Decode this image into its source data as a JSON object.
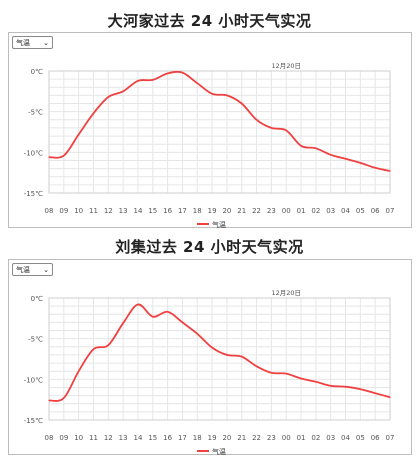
{
  "charts": [
    {
      "title": "大河家过去 24 小时天气实况",
      "select_value": "气温",
      "date_label": "12月20日",
      "legend": "气温"
    },
    {
      "title": "刘集过去 24 小时天气实况",
      "select_value": "气温",
      "date_label": "12月20日",
      "legend": "气温"
    }
  ],
  "colors": {
    "line": "#f04040",
    "grid": "#e6e6e6",
    "axis_text": "#555555"
  },
  "icons": [
    "chevron-down-icon"
  ],
  "chart_data": [
    {
      "type": "line",
      "title": "大河家过去 24 小时天气实况",
      "categories": [
        "08",
        "09",
        "10",
        "11",
        "12",
        "13",
        "14",
        "15",
        "16",
        "17",
        "18",
        "19",
        "20",
        "21",
        "22",
        "23",
        "00",
        "01",
        "02",
        "03",
        "04",
        "05",
        "06",
        "07"
      ],
      "y_ticks": [
        "0℃",
        "-5℃",
        "-10℃",
        "-15℃"
      ],
      "ylim": [
        -15,
        0
      ],
      "grid": true,
      "legend_position": "bottom",
      "series": [
        {
          "name": "气温",
          "values": [
            -10.6,
            -10.4,
            -7.8,
            -5.2,
            -3.2,
            -2.5,
            -1.2,
            -1.1,
            -0.3,
            -0.2,
            -1.5,
            -2.8,
            -3.0,
            -4.0,
            -6.0,
            -7.0,
            -7.3,
            -9.2,
            -9.5,
            -10.3,
            -10.8,
            -11.3,
            -11.9,
            -12.3
          ]
        }
      ]
    },
    {
      "type": "line",
      "title": "刘集过去 24 小时天气实况",
      "categories": [
        "08",
        "09",
        "10",
        "11",
        "12",
        "13",
        "14",
        "15",
        "16",
        "17",
        "18",
        "19",
        "20",
        "21",
        "22",
        "23",
        "00",
        "01",
        "02",
        "03",
        "04",
        "05",
        "06",
        "07"
      ],
      "y_ticks": [
        "0℃",
        "-5℃",
        "-10℃",
        "-15℃"
      ],
      "ylim": [
        -15,
        0
      ],
      "grid": true,
      "legend_position": "bottom",
      "series": [
        {
          "name": "气温",
          "values": [
            -12.6,
            -12.3,
            -9.0,
            -6.3,
            -5.8,
            -3.1,
            -0.8,
            -2.3,
            -1.7,
            -3.0,
            -4.4,
            -6.1,
            -7.0,
            -7.2,
            -8.4,
            -9.2,
            -9.3,
            -9.9,
            -10.3,
            -10.8,
            -10.9,
            -11.2,
            -11.7,
            -12.2
          ]
        }
      ]
    }
  ]
}
